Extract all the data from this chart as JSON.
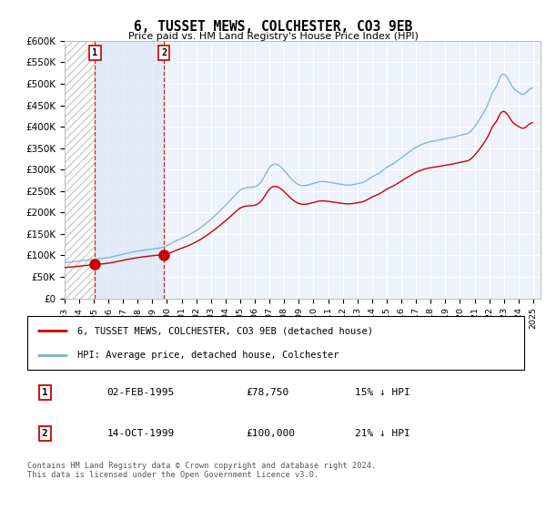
{
  "title": "6, TUSSET MEWS, COLCHESTER, CO3 9EB",
  "subtitle": "Price paid vs. HM Land Registry's House Price Index (HPI)",
  "ylim": [
    0,
    600000
  ],
  "yticks": [
    0,
    50000,
    100000,
    150000,
    200000,
    250000,
    300000,
    350000,
    400000,
    450000,
    500000,
    550000,
    600000
  ],
  "ytick_labels": [
    "£0",
    "£50K",
    "£100K",
    "£150K",
    "£200K",
    "£250K",
    "£300K",
    "£350K",
    "£400K",
    "£450K",
    "£500K",
    "£550K",
    "£600K"
  ],
  "xlim_start": 1993.0,
  "xlim_end": 2025.5,
  "transaction1_date": 1995.09,
  "transaction1_price": 78750,
  "transaction2_date": 1999.79,
  "transaction2_price": 100000,
  "transaction1_display": "02-FEB-1995",
  "transaction1_price_display": "£78,750",
  "transaction1_hpi_text": "15% ↓ HPI",
  "transaction2_display": "14-OCT-1999",
  "transaction2_price_display": "£100,000",
  "transaction2_hpi_text": "21% ↓ HPI",
  "legend_line1": "6, TUSSET MEWS, COLCHESTER, CO3 9EB (detached house)",
  "legend_line2": "HPI: Average price, detached house, Colchester",
  "footer": "Contains HM Land Registry data © Crown copyright and database right 2024.\nThis data is licensed under the Open Government Licence v3.0.",
  "red_color": "#cc0000",
  "blue_color": "#7ab0d4",
  "background_plot": "#eef2fb",
  "hatch_facecolor": "#ffffff",
  "hatch_edgecolor": "#cccccc",
  "light_blue_fill": "#dce8f5"
}
